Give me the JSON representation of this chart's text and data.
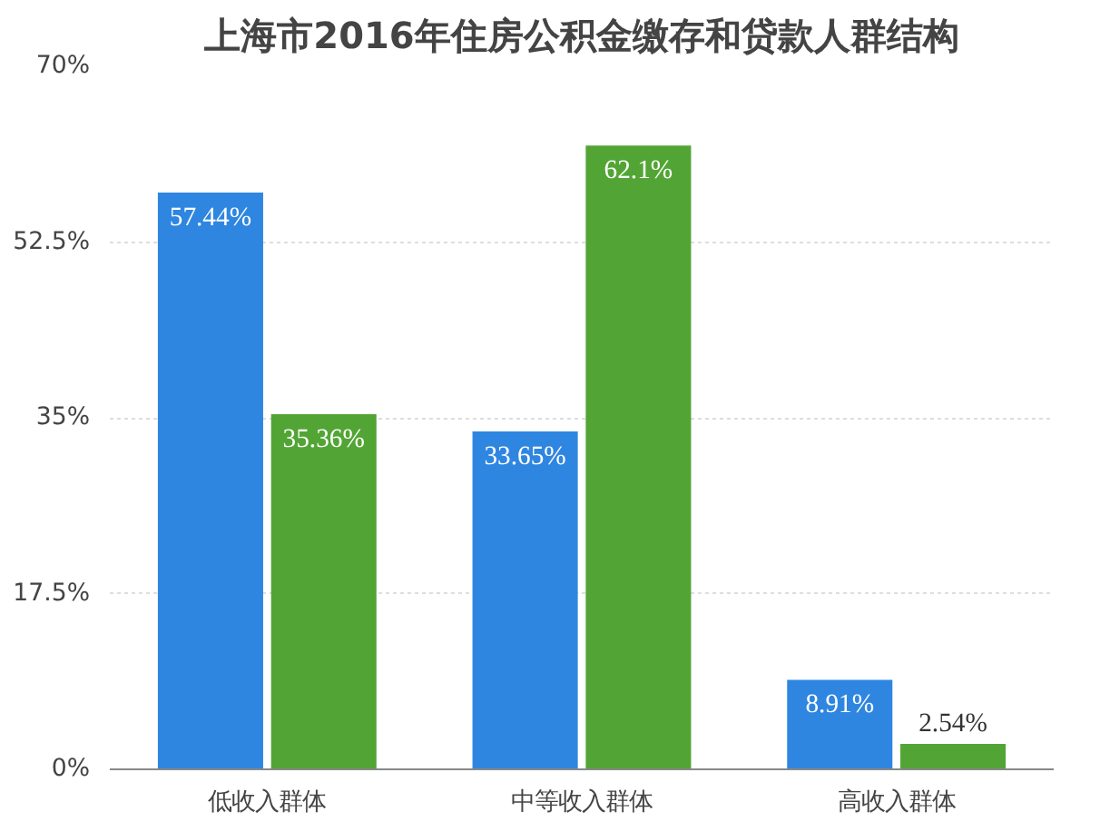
{
  "chart_data": {
    "type": "bar",
    "title": "上海市2016年住房公积金缴存和贷款人群结构",
    "categories": [
      "低收入群体",
      "中等收入群体",
      "高收入群体"
    ],
    "series": [
      {
        "color": "#2f86e0",
        "values": [
          57.44,
          33.65,
          8.91
        ],
        "value_labels": [
          "57.44%",
          "33.65%",
          "8.91%"
        ]
      },
      {
        "color": "#52a534",
        "values": [
          35.36,
          62.1,
          2.54
        ],
        "value_labels": [
          "35.36%",
          "62.1%",
          "2.54%"
        ]
      }
    ],
    "ylim": [
      0,
      70
    ],
    "yticks": [
      {
        "value": 0,
        "label": "0%"
      },
      {
        "value": 17.5,
        "label": "17.5%"
      },
      {
        "value": 35,
        "label": "35%"
      },
      {
        "value": 52.5,
        "label": "52.5%"
      },
      {
        "value": 70,
        "label": "70%"
      }
    ],
    "grid": "y"
  }
}
